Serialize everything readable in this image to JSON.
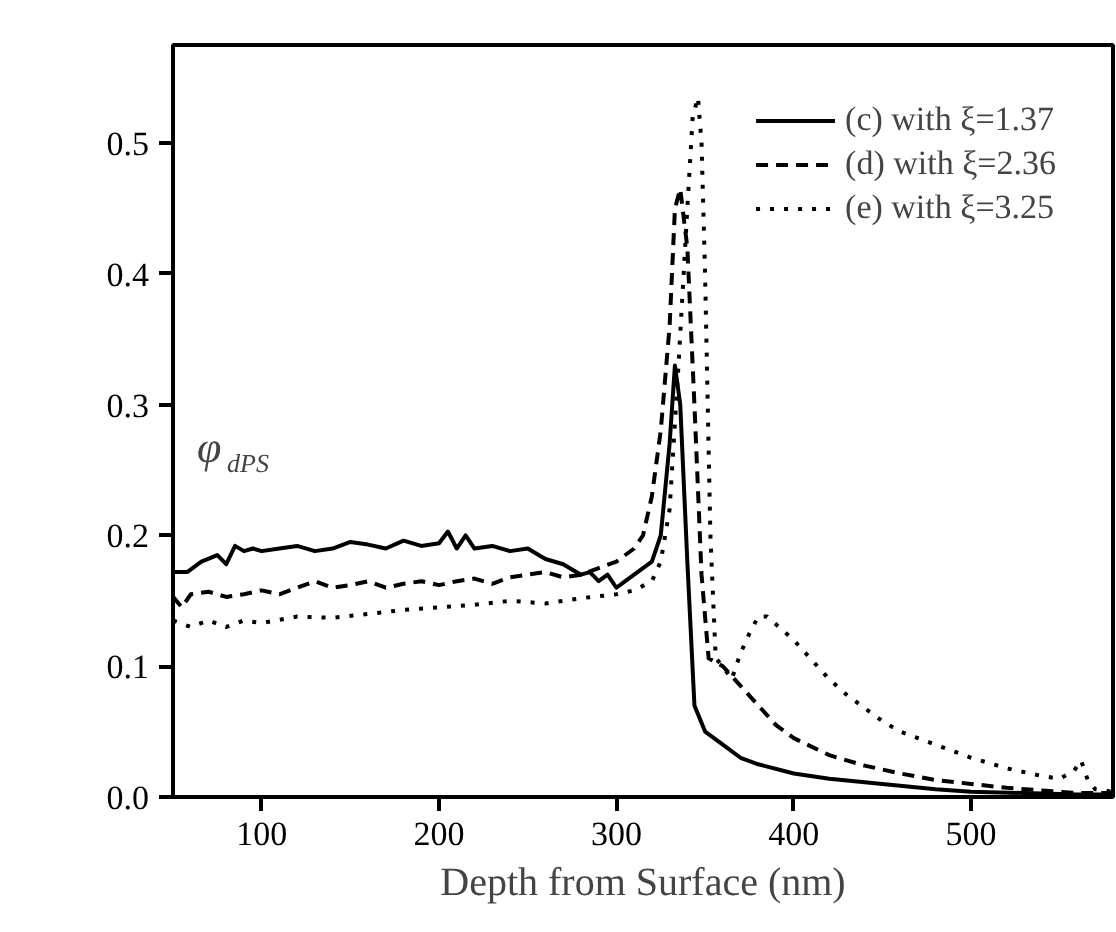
{
  "chart_data": {
    "type": "line",
    "xlabel": "Depth from Surface (nm)",
    "ylabel": "φ$_{dPS}$",
    "xlim": [
      50,
      580
    ],
    "ylim": [
      0,
      0.575
    ],
    "xticks": [
      100,
      200,
      300,
      400,
      500
    ],
    "yticks": [
      {
        "value": 0,
        "label": "0.0"
      },
      0.1,
      0.2,
      0.3,
      0.4,
      0.5
    ],
    "grid": false,
    "legend": "top right",
    "marker": "none",
    "series": [
      {
        "name": "(c) with ξ=1.37",
        "color": "#000000",
        "line_style": "solid",
        "x": [
          50,
          58,
          66,
          75,
          80,
          85,
          90,
          95,
          100,
          110,
          120,
          130,
          140,
          150,
          160,
          170,
          180,
          190,
          200,
          205,
          210,
          215,
          220,
          230,
          240,
          250,
          260,
          270,
          280,
          285,
          290,
          295,
          300,
          305,
          310,
          315,
          320,
          325,
          330,
          333,
          336,
          340,
          344,
          350,
          360,
          370,
          380,
          400,
          420,
          450,
          480,
          500,
          530,
          560,
          580
        ],
        "values": [
          0.172,
          0.172,
          0.18,
          0.185,
          0.178,
          0.192,
          0.188,
          0.19,
          0.188,
          0.19,
          0.192,
          0.188,
          0.19,
          0.195,
          0.193,
          0.19,
          0.196,
          0.192,
          0.194,
          0.203,
          0.19,
          0.2,
          0.19,
          0.192,
          0.188,
          0.19,
          0.182,
          0.178,
          0.17,
          0.172,
          0.165,
          0.17,
          0.16,
          0.165,
          0.17,
          0.175,
          0.18,
          0.2,
          0.27,
          0.33,
          0.3,
          0.18,
          0.07,
          0.05,
          0.04,
          0.03,
          0.025,
          0.018,
          0.014,
          0.01,
          0.006,
          0.004,
          0.003,
          0.002,
          0.002
        ]
      },
      {
        "name": "(d) with ξ=2.36",
        "color": "#000000",
        "line_style": "dashed",
        "x": [
          50,
          55,
          60,
          70,
          80,
          90,
          100,
          110,
          120,
          130,
          140,
          150,
          160,
          170,
          180,
          190,
          200,
          210,
          220,
          230,
          240,
          250,
          260,
          270,
          280,
          290,
          300,
          310,
          315,
          320,
          325,
          330,
          333,
          336,
          340,
          344,
          348,
          352,
          360,
          370,
          380,
          390,
          400,
          420,
          440,
          460,
          480,
          500,
          520,
          540,
          560,
          580
        ],
        "values": [
          0.153,
          0.145,
          0.155,
          0.157,
          0.153,
          0.155,
          0.158,
          0.155,
          0.16,
          0.165,
          0.16,
          0.162,
          0.165,
          0.16,
          0.163,
          0.165,
          0.162,
          0.165,
          0.167,
          0.163,
          0.168,
          0.17,
          0.172,
          0.168,
          0.17,
          0.175,
          0.18,
          0.19,
          0.2,
          0.23,
          0.28,
          0.36,
          0.45,
          0.465,
          0.42,
          0.3,
          0.17,
          0.106,
          0.1,
          0.085,
          0.07,
          0.055,
          0.045,
          0.032,
          0.024,
          0.018,
          0.013,
          0.01,
          0.007,
          0.005,
          0.003,
          0.003
        ]
      },
      {
        "name": "(e) with ξ=3.25",
        "color": "#000000",
        "line_style": "dotted",
        "x": [
          50,
          60,
          70,
          80,
          90,
          100,
          120,
          140,
          160,
          180,
          200,
          220,
          240,
          260,
          280,
          300,
          310,
          320,
          325,
          330,
          335,
          340,
          343,
          346,
          348,
          350,
          353,
          356,
          360,
          365,
          370,
          375,
          380,
          385,
          390,
          400,
          410,
          420,
          430,
          440,
          450,
          460,
          480,
          500,
          520,
          540,
          550,
          558,
          562,
          566,
          570,
          580
        ],
        "values": [
          0.135,
          0.13,
          0.135,
          0.13,
          0.135,
          0.133,
          0.138,
          0.137,
          0.14,
          0.143,
          0.145,
          0.147,
          0.15,
          0.148,
          0.152,
          0.155,
          0.158,
          0.165,
          0.18,
          0.22,
          0.33,
          0.45,
          0.52,
          0.535,
          0.5,
          0.4,
          0.2,
          0.106,
          0.1,
          0.09,
          0.11,
          0.125,
          0.138,
          0.138,
          0.132,
          0.12,
          0.105,
          0.09,
          0.078,
          0.068,
          0.058,
          0.05,
          0.04,
          0.03,
          0.022,
          0.016,
          0.014,
          0.02,
          0.028,
          0.012,
          0.006,
          0.004
        ]
      }
    ]
  }
}
